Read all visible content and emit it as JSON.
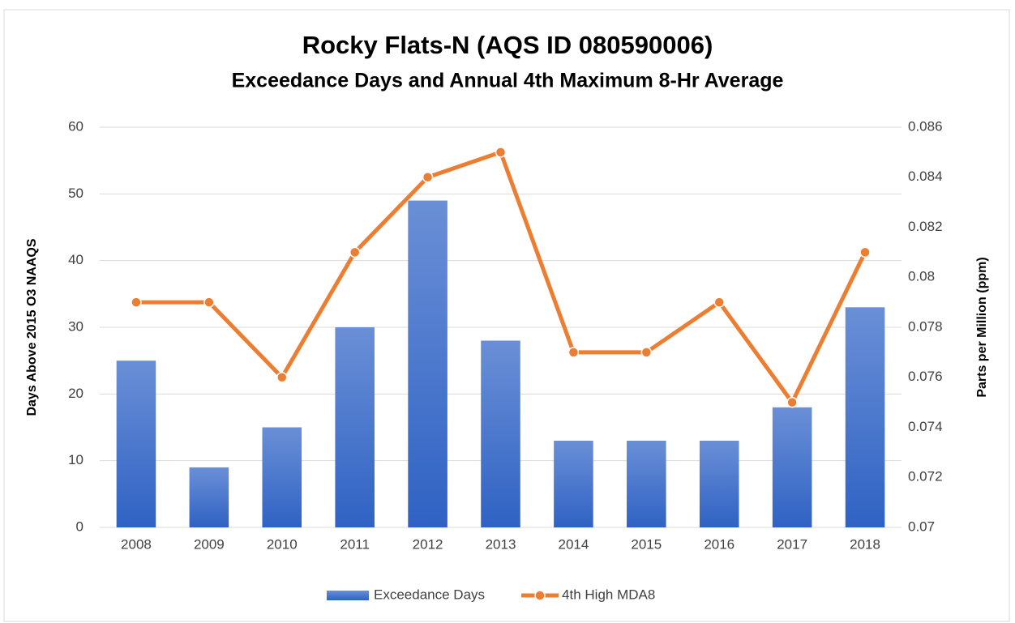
{
  "chart_data": {
    "type": "bar",
    "title": "Rocky Flats-N (AQS ID 080590006)",
    "subtitle": "Exceedance Days and Annual 4th Maximum 8-Hr Average",
    "y_label": "Days Above 2015 O3 NAAQS",
    "y2_label": "Parts per Million (ppm)",
    "categories": [
      "2008",
      "2009",
      "2010",
      "2011",
      "2012",
      "2013",
      "2014",
      "2015",
      "2016",
      "2017",
      "2018"
    ],
    "series": [
      {
        "name": "Exceedance Days",
        "type": "bar",
        "color": "#4472c4",
        "values": [
          25,
          9,
          15,
          30,
          49,
          28,
          13,
          13,
          13,
          18,
          33
        ]
      },
      {
        "name": "4th High MDA8",
        "type": "line",
        "axis": "y2",
        "color": "#ed7d31",
        "values": [
          0.079,
          0.079,
          0.076,
          0.081,
          0.084,
          0.085,
          0.077,
          0.077,
          0.079,
          0.075,
          0.081
        ]
      }
    ],
    "ylim": [
      0,
      60
    ],
    "yticks": [
      0,
      10,
      20,
      30,
      40,
      50,
      60
    ],
    "y2lim": [
      0.07,
      0.086
    ],
    "y2ticks": [
      0.07,
      0.072,
      0.074,
      0.076,
      0.078,
      0.08,
      0.082,
      0.084,
      0.086
    ],
    "grid": true,
    "legend": "bottom"
  }
}
